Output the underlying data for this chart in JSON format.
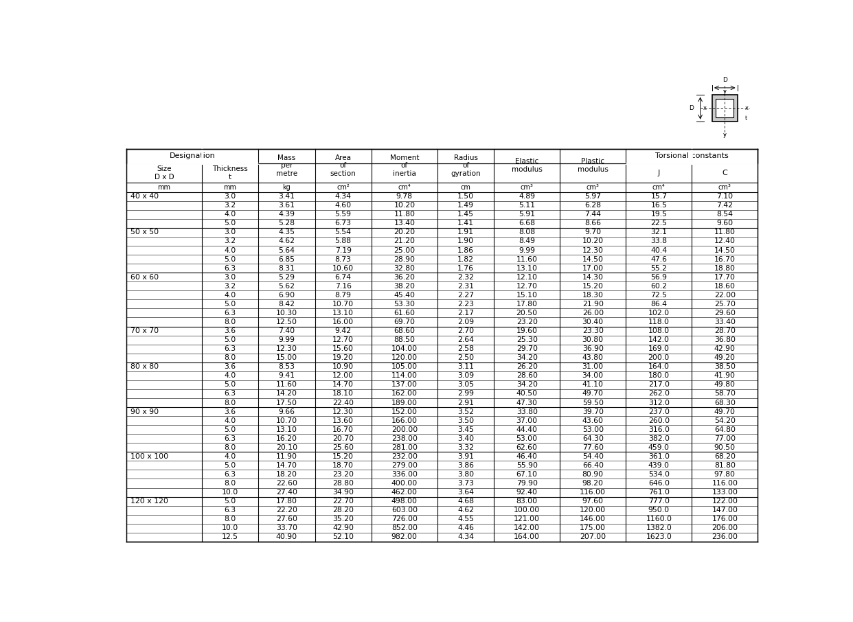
{
  "rows": [
    [
      "40 x 40",
      "3.0",
      "3.41",
      "4.34",
      "9.78",
      "1.50",
      "4.89",
      "5.97",
      "15.7",
      "7.10"
    ],
    [
      "",
      "3.2",
      "3.61",
      "4.60",
      "10.20",
      "1.49",
      "5.11",
      "6.28",
      "16.5",
      "7.42"
    ],
    [
      "",
      "4.0",
      "4.39",
      "5.59",
      "11.80",
      "1.45",
      "5.91",
      "7.44",
      "19.5",
      "8.54"
    ],
    [
      "",
      "5.0",
      "5.28",
      "6.73",
      "13.40",
      "1.41",
      "6.68",
      "8.66",
      "22.5",
      "9.60"
    ],
    [
      "50 x 50",
      "3.0",
      "4.35",
      "5.54",
      "20.20",
      "1.91",
      "8.08",
      "9.70",
      "32.1",
      "11.80"
    ],
    [
      "",
      "3.2",
      "4.62",
      "5.88",
      "21.20",
      "1.90",
      "8.49",
      "10.20",
      "33.8",
      "12.40"
    ],
    [
      "",
      "4.0",
      "5.64",
      "7.19",
      "25.00",
      "1.86",
      "9.99",
      "12.30",
      "40.4",
      "14.50"
    ],
    [
      "",
      "5.0",
      "6.85",
      "8.73",
      "28.90",
      "1.82",
      "11.60",
      "14.50",
      "47.6",
      "16.70"
    ],
    [
      "",
      "6.3",
      "8.31",
      "10.60",
      "32.80",
      "1.76",
      "13.10",
      "17.00",
      "55.2",
      "18.80"
    ],
    [
      "60 x 60",
      "3.0",
      "5.29",
      "6.74",
      "36.20",
      "2.32",
      "12.10",
      "14.30",
      "56.9",
      "17.70"
    ],
    [
      "",
      "3.2",
      "5.62",
      "7.16",
      "38.20",
      "2.31",
      "12.70",
      "15.20",
      "60.2",
      "18.60"
    ],
    [
      "",
      "4.0",
      "6.90",
      "8.79",
      "45.40",
      "2.27",
      "15.10",
      "18.30",
      "72.5",
      "22.00"
    ],
    [
      "",
      "5.0",
      "8.42",
      "10.70",
      "53.30",
      "2.23",
      "17.80",
      "21.90",
      "86.4",
      "25.70"
    ],
    [
      "",
      "6.3",
      "10.30",
      "13.10",
      "61.60",
      "2.17",
      "20.50",
      "26.00",
      "102.0",
      "29.60"
    ],
    [
      "",
      "8.0",
      "12.50",
      "16.00",
      "69.70",
      "2.09",
      "23.20",
      "30.40",
      "118.0",
      "33.40"
    ],
    [
      "70 x 70",
      "3.6",
      "7.40",
      "9.42",
      "68.60",
      "2.70",
      "19.60",
      "23.30",
      "108.0",
      "28.70"
    ],
    [
      "",
      "5.0",
      "9.99",
      "12.70",
      "88.50",
      "2.64",
      "25.30",
      "30.80",
      "142.0",
      "36.80"
    ],
    [
      "",
      "6.3",
      "12.30",
      "15.60",
      "104.00",
      "2.58",
      "29.70",
      "36.90",
      "169.0",
      "42.90"
    ],
    [
      "",
      "8.0",
      "15.00",
      "19.20",
      "120.00",
      "2.50",
      "34.20",
      "43.80",
      "200.0",
      "49.20"
    ],
    [
      "80 x 80",
      "3.6",
      "8.53",
      "10.90",
      "105.00",
      "3.11",
      "26.20",
      "31.00",
      "164.0",
      "38.50"
    ],
    [
      "",
      "4.0",
      "9.41",
      "12.00",
      "114.00",
      "3.09",
      "28.60",
      "34.00",
      "180.0",
      "41.90"
    ],
    [
      "",
      "5.0",
      "11.60",
      "14.70",
      "137.00",
      "3.05",
      "34.20",
      "41.10",
      "217.0",
      "49.80"
    ],
    [
      "",
      "6.3",
      "14.20",
      "18.10",
      "162.00",
      "2.99",
      "40.50",
      "49.70",
      "262.0",
      "58.70"
    ],
    [
      "",
      "8.0",
      "17.50",
      "22.40",
      "189.00",
      "2.91",
      "47.30",
      "59.50",
      "312.0",
      "68.30"
    ],
    [
      "90 x 90",
      "3.6",
      "9.66",
      "12.30",
      "152.00",
      "3.52",
      "33.80",
      "39.70",
      "237.0",
      "49.70"
    ],
    [
      "",
      "4.0",
      "10.70",
      "13.60",
      "166.00",
      "3.50",
      "37.00",
      "43.60",
      "260.0",
      "54.20"
    ],
    [
      "",
      "5.0",
      "13.10",
      "16.70",
      "200.00",
      "3.45",
      "44.40",
      "53.00",
      "316.0",
      "64.80"
    ],
    [
      "",
      "6.3",
      "16.20",
      "20.70",
      "238.00",
      "3.40",
      "53.00",
      "64.30",
      "382.0",
      "77.00"
    ],
    [
      "",
      "8.0",
      "20.10",
      "25.60",
      "281.00",
      "3.32",
      "62.60",
      "77.60",
      "459.0",
      "90.50"
    ],
    [
      "100 x 100",
      "4.0",
      "11.90",
      "15.20",
      "232.00",
      "3.91",
      "46.40",
      "54.40",
      "361.0",
      "68.20"
    ],
    [
      "",
      "5.0",
      "14.70",
      "18.70",
      "279.00",
      "3.86",
      "55.90",
      "66.40",
      "439.0",
      "81.80"
    ],
    [
      "",
      "6.3",
      "18.20",
      "23.20",
      "336.00",
      "3.80",
      "67.10",
      "80.90",
      "534.0",
      "97.80"
    ],
    [
      "",
      "8.0",
      "22.60",
      "28.80",
      "400.00",
      "3.73",
      "79.90",
      "98.20",
      "646.0",
      "116.00"
    ],
    [
      "",
      "10.0",
      "27.40",
      "34.90",
      "462.00",
      "3.64",
      "92.40",
      "116.00",
      "761.0",
      "133.00"
    ],
    [
      "120 x 120",
      "5.0",
      "17.80",
      "22.70",
      "498.00",
      "4.68",
      "83.00",
      "97.60",
      "777.0",
      "122.00"
    ],
    [
      "",
      "6.3",
      "22.20",
      "28.20",
      "603.00",
      "4.62",
      "100.00",
      "120.00",
      "950.0",
      "147.00"
    ],
    [
      "",
      "8.0",
      "27.60",
      "35.20",
      "726.00",
      "4.55",
      "121.00",
      "146.00",
      "1160.0",
      "176.00"
    ],
    [
      "",
      "10.0",
      "33.70",
      "42.90",
      "852.00",
      "4.46",
      "142.00",
      "175.00",
      "1382.0",
      "206.00"
    ],
    [
      "",
      "12.5",
      "40.90",
      "52.10",
      "982.00",
      "4.34",
      "164.00",
      "207.00",
      "1623.0",
      "236.00"
    ]
  ],
  "group_dividers": [
    3,
    8,
    14,
    18,
    23,
    28,
    33
  ],
  "col_widths_rel": [
    1.2,
    0.9,
    0.9,
    0.9,
    1.05,
    0.9,
    1.05,
    1.05,
    1.05,
    1.05
  ],
  "units": [
    "mm",
    "mm",
    "kg",
    "cm²",
    "cm⁴",
    "cm",
    "cm³",
    "cm³",
    "cm⁴",
    "cm³"
  ],
  "bg_color": "#ffffff",
  "line_color": "#000000",
  "font_size": 7.8,
  "header_font_size": 8.0
}
